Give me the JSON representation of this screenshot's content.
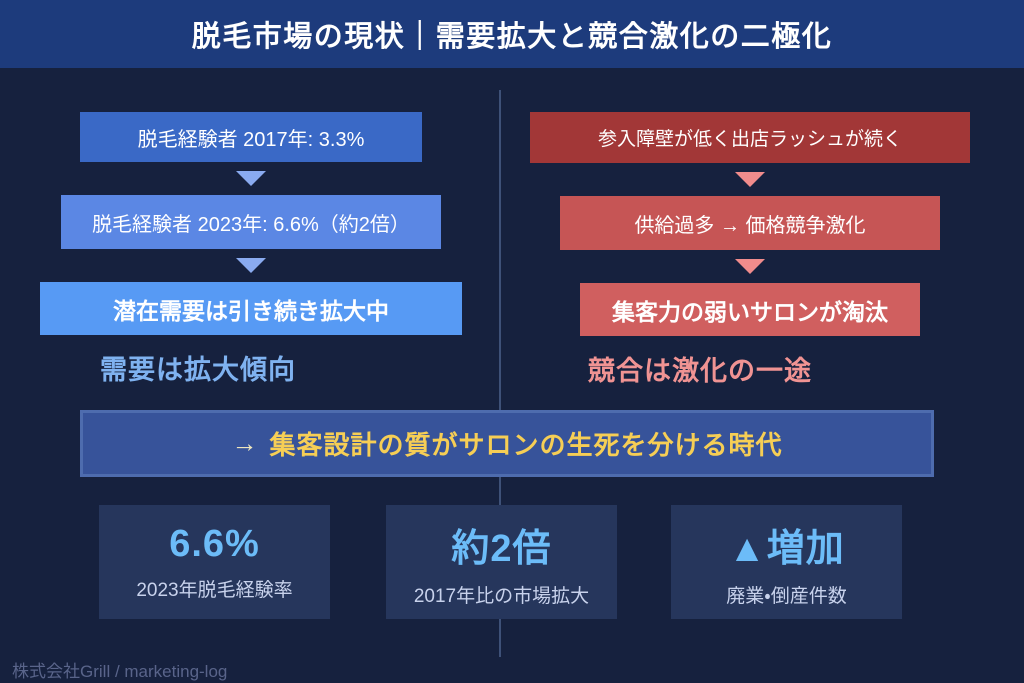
{
  "title": "脱毛市場の現状｜需要拡大と競合激化の二極化",
  "left_flow": {
    "steps": [
      {
        "label": "脱毛経験者 2017年: 3.3%"
      },
      {
        "label": "脱毛経験者 2023年: 6.6%（約2倍）"
      },
      {
        "label": "潜在需要は引き続き拡大中"
      }
    ],
    "summary": "需要は拡大傾向"
  },
  "right_flow": {
    "steps": [
      {
        "label": "参入障壁が低く出店ラッシュが続く"
      },
      {
        "label": "供給過多 → 価格競争激化"
      },
      {
        "label": "集客力の弱いサロンが淘汰"
      }
    ],
    "summary": "競合は激化の一途"
  },
  "banner": {
    "arrow": "→",
    "text": "集客設計の質がサロンの生死を分ける時代"
  },
  "stats": [
    {
      "value": "6.6%",
      "caption": "2023年脱毛経験率"
    },
    {
      "value": "約2倍",
      "caption": "2017年比の市場拡大"
    },
    {
      "value": "▲増加",
      "caption": "廃業・倒産件数"
    }
  ],
  "footer": "株式会社Grill / marketing-log",
  "colors": {
    "title_band": "#1d3b7c",
    "background": "#16213e",
    "blue_step_1": "#3a69c6",
    "blue_step_2": "#5b87e4",
    "blue_step_3": "#579af4",
    "blue_arrow": "#8aabf0",
    "blue_summary": "#7fb2f0",
    "red_step_1": "#a23737",
    "red_step_2": "#c65555",
    "red_step_3": "#d05f5f",
    "pink_arrow": "#f08c8c",
    "pink_summary": "#f09393",
    "banner_bg": "#37539a",
    "banner_text": "#f6ce55",
    "stat_value": "#6cbcf8",
    "stat_card_bg": "#26365c"
  }
}
